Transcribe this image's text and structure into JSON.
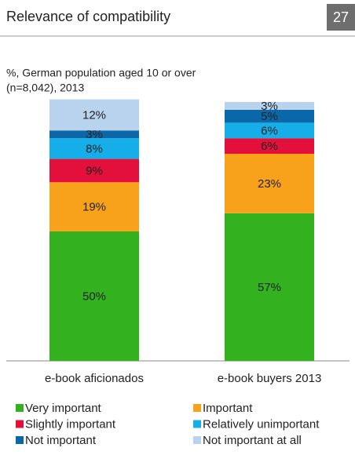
{
  "page_number": 27,
  "chart_data": {
    "type": "stacked_bar",
    "title": "Relevance of compatibility",
    "subtitle": [
      "%, German population aged 10 or over",
      "(n=8,042), 2013"
    ],
    "categories": [
      "e-book aficionados",
      "e-book buyers 2013"
    ],
    "legend": "bottom",
    "series": [
      {
        "name": "Very important",
        "color": "#34b11f",
        "values": [
          50,
          57
        ],
        "value_labels": [
          "50%",
          "57%"
        ]
      },
      {
        "name": "Important",
        "color": "#f8a21c",
        "values": [
          19,
          23
        ],
        "value_labels": [
          "19%",
          "23%"
        ]
      },
      {
        "name": "Slightly important",
        "color": "#e2103b",
        "values": [
          9,
          6
        ],
        "value_labels": [
          "9%",
          "6%"
        ]
      },
      {
        "name": "Relatively unimportant",
        "color": "#16aee9",
        "values": [
          8,
          6
        ],
        "value_labels": [
          "8%",
          "6%"
        ]
      },
      {
        "name": "Not important",
        "color": "#0b68a8",
        "values": [
          3,
          5
        ],
        "value_labels": [
          "3%",
          "5%"
        ]
      },
      {
        "name": "Not important at all",
        "color": "#b9d3ef",
        "values": [
          12,
          3
        ],
        "value_labels": [
          "12%",
          "3%"
        ]
      }
    ]
  }
}
